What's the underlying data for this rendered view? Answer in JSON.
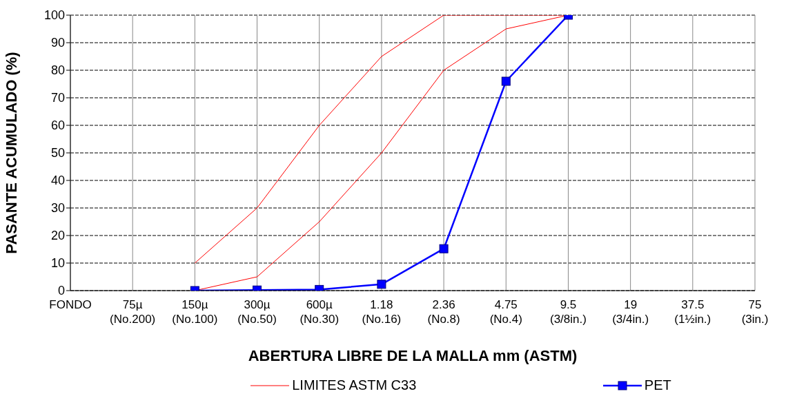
{
  "chart_data": {
    "type": "line",
    "xlabel": "ABERTURA LIBRE DE LA MALLA mm (ASTM)",
    "ylabel": "PASANTE ACUMULADO (%)",
    "categories": [
      "FONDO",
      "75µ (No.200)",
      "150µ (No.100)",
      "300µ (No.50)",
      "600µ (No.30)",
      "1.18 (No.16)",
      "2.36 (No.8)",
      "4.75 (No.4)",
      "9.5 (3/8in.)",
      "19 (3/4in.)",
      "37.5 (1½in.)",
      "75 (3in.)"
    ],
    "series": [
      {
        "name": "LIMITES ASTM C33",
        "color": "#ff0000",
        "marker": "none",
        "values": [
          null,
          null,
          10,
          30,
          60,
          85,
          100,
          100,
          100,
          null,
          null,
          null
        ]
      },
      {
        "color": "#ff0000",
        "marker": "none",
        "values": [
          null,
          null,
          0,
          5,
          25,
          50,
          80,
          95,
          100,
          null,
          null,
          null
        ]
      },
      {
        "name": "PET",
        "color": "#0000ff",
        "marker": "square",
        "values": [
          null,
          null,
          0,
          0.2,
          0.4,
          2.3,
          15.2,
          76,
          100,
          null,
          null,
          null
        ]
      }
    ],
    "ylim": [
      0,
      100
    ],
    "yticks": [
      0,
      10,
      20,
      30,
      40,
      50,
      60,
      70,
      80,
      90,
      100
    ],
    "grid": true,
    "legend": "bottom"
  }
}
